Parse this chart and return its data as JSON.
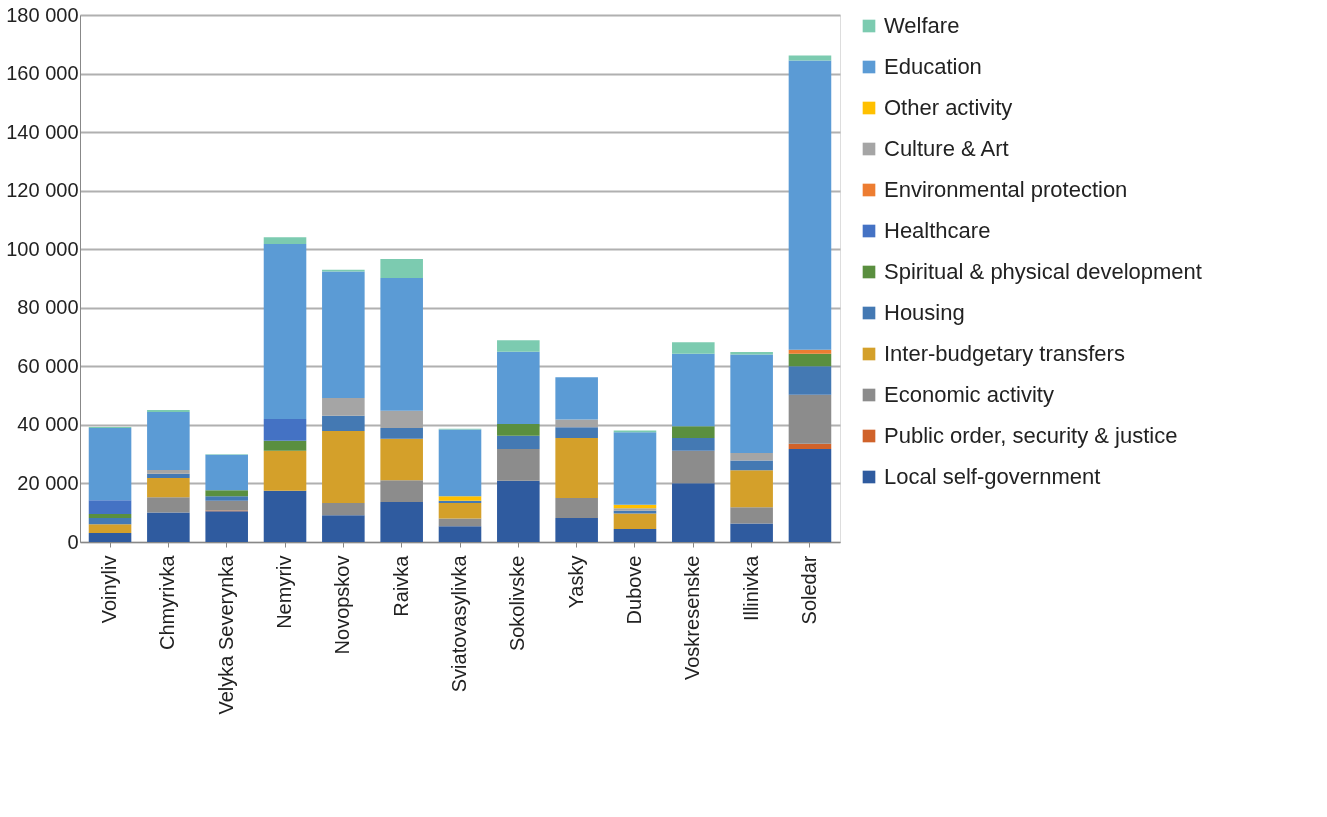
{
  "chart_data": {
    "type": "bar",
    "stacked": true,
    "legend": "right",
    "grid": "y",
    "categories": [
      "Voinyliv",
      "Chmyrivka",
      "Velyka Severynka",
      "Nemyriv",
      "Novopskov",
      "Raivka",
      "Sviatovasylivka",
      "Sokolivske",
      "Yasky",
      "Dubove",
      "Voskresenske",
      "Illinivka",
      "Soledar"
    ],
    "ylim": [
      0,
      180000
    ],
    "yticks": [
      {
        "value": 0,
        "label": "0"
      },
      {
        "value": 20000,
        "label": "20 000"
      },
      {
        "value": 40000,
        "label": "40 000"
      },
      {
        "value": 60000,
        "label": "60 000"
      },
      {
        "value": 80000,
        "label": "80 000"
      },
      {
        "value": 100000,
        "label": "100 000"
      },
      {
        "value": 120000,
        "label": "120 000"
      },
      {
        "value": 140000,
        "label": "140 000"
      },
      {
        "value": 160000,
        "label": "160 000"
      },
      {
        "value": 180000,
        "label": "180 000"
      }
    ],
    "series": [
      {
        "name": "Local self-government",
        "color": "#2f5b9f",
        "values": [
          3100,
          10100,
          10500,
          17500,
          9100,
          13700,
          5400,
          20900,
          8200,
          4400,
          20100,
          6300,
          31800
        ]
      },
      {
        "name": "Public order, security & justice",
        "color": "#d0622a",
        "values": [
          null,
          null,
          300,
          null,
          null,
          null,
          null,
          null,
          null,
          null,
          null,
          null,
          1800
        ]
      },
      {
        "name": "Economic activity",
        "color": "#8c8c8c",
        "values": [
          null,
          5200,
          3300,
          null,
          4200,
          7400,
          2600,
          10900,
          6800,
          null,
          11100,
          5600,
          16700
        ]
      },
      {
        "name": "Inter-budgetary transfers",
        "color": "#d4a02a",
        "values": [
          3000,
          6600,
          null,
          13700,
          24600,
          14200,
          5300,
          null,
          20500,
          5300,
          null,
          12600,
          null
        ]
      },
      {
        "name": "Housing",
        "color": "#4479b3",
        "values": [
          2100,
          1400,
          1500,
          null,
          5200,
          3600,
          800,
          4500,
          3700,
          1000,
          4300,
          3300,
          9700
        ]
      },
      {
        "name": "Spiritual & physical development",
        "color": "#5a8f3f",
        "values": [
          1400,
          null,
          2100,
          3400,
          null,
          null,
          null,
          4000,
          null,
          null,
          4000,
          null,
          4300
        ]
      },
      {
        "name": "Healthcare",
        "color": "#4472c4",
        "values": [
          4700,
          null,
          null,
          7400,
          null,
          null,
          null,
          null,
          null,
          null,
          null,
          null,
          null
        ]
      },
      {
        "name": "Environmental protection",
        "color": "#ed7d31",
        "values": [
          null,
          null,
          null,
          null,
          null,
          null,
          null,
          null,
          null,
          null,
          null,
          null,
          1400
        ]
      },
      {
        "name": "Culture & Art",
        "color": "#a5a5a5",
        "values": [
          null,
          1300,
          null,
          null,
          6100,
          5900,
          null,
          null,
          2600,
          800,
          null,
          2600,
          null
        ]
      },
      {
        "name": "Other activity",
        "color": "#ffc000",
        "values": [
          null,
          null,
          null,
          null,
          null,
          null,
          1500,
          null,
          null,
          1200,
          null,
          null,
          null
        ]
      },
      {
        "name": "Education",
        "color": "#5b9bd5",
        "values": [
          24600,
          19800,
          12100,
          59800,
          43200,
          45400,
          22800,
          24700,
          14500,
          24800,
          24800,
          33600,
          98800
        ]
      },
      {
        "name": "Welfare",
        "color": "#7ccbb0",
        "values": [
          400,
          700,
          200,
          2300,
          600,
          6500,
          300,
          3900,
          null,
          600,
          3900,
          900,
          1700
        ]
      }
    ]
  }
}
